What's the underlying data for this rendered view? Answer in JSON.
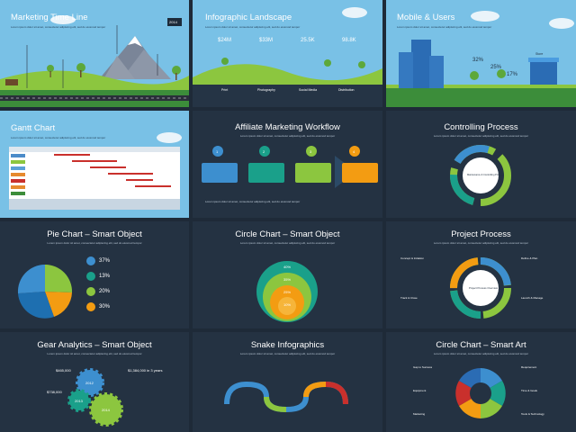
{
  "slides": {
    "s1": {
      "title": "Marketing Time Line",
      "badge": "2014"
    },
    "s2": {
      "title": "Infographic Landscape",
      "stats": [
        {
          "value": "$24M"
        },
        {
          "value": "$33M"
        },
        {
          "value": "25.5K"
        },
        {
          "value": "98.8K"
        }
      ],
      "categories": [
        "Print",
        "Photography",
        "Social Media",
        "Distribution"
      ]
    },
    "s3": {
      "title": "Mobile & Users",
      "percents": [
        "32%",
        "25%",
        "17%"
      ],
      "storefront_label": "Store"
    },
    "s4": {
      "title": "Gantt Chart"
    },
    "s5": {
      "title": "Affiliate Marketing Workflow",
      "steps": [
        "1",
        "2",
        "3",
        "4"
      ]
    },
    "s6": {
      "title": "Controlling Process",
      "center": "Maintenance & Controlling Process"
    },
    "s7": {
      "title": "Pie Chart – Smart Object",
      "percents": [
        "37%",
        "13%",
        "20%",
        "30%"
      ]
    },
    "s8": {
      "title": "Circle Chart – Smart Object",
      "rings": [
        "40%",
        "35%",
        "25%",
        "10%"
      ]
    },
    "s9": {
      "title": "Project Process",
      "center": "Project Process Overview",
      "labels": [
        "Concept & Initiation",
        "Define & Plan",
        "Track & Close",
        "Launch & Manage"
      ]
    },
    "s10": {
      "title": "Gear Analytics – Smart Object",
      "values": [
        "$465,000",
        "$738,000",
        "$1,384,000 in 3 years"
      ],
      "gear_years": [
        "2012",
        "2013",
        "2014"
      ]
    },
    "s11": {
      "title": "Snake Infographics"
    },
    "s12": {
      "title": "Circle Chart – Smart Art",
      "labels": [
        "Gap to Success",
        "Requirement",
        "Equipment",
        "Time & Goals",
        "Marketing",
        "Tools & Technology"
      ]
    },
    "common": {
      "subtitle": "Lorem ipsum dolor sit amet, consectetur adipiscing elit, sed do eiusmod tempor",
      "link_icon": "∞"
    }
  }
}
